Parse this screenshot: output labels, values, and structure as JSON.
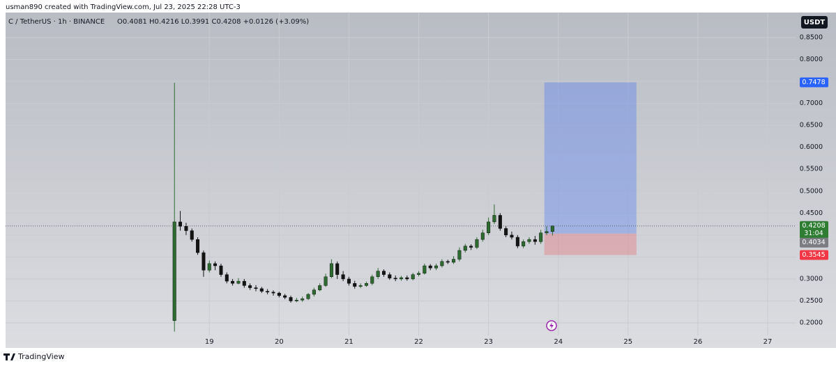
{
  "header": {
    "credit": "usman890 created with TradingView.com, Jul 23, 2025 22:28 UTC-3",
    "symbol": "C / TetherUS · 1h · BINANCE",
    "ohlc": "O0.4081 H0.4216 L0.3991 C0.4208 +0.0126 (+3.09%)",
    "currency": "USDT"
  },
  "chart_data": {
    "type": "candlestick",
    "x": [
      18.5,
      18.583,
      18.667,
      18.75,
      18.833,
      18.917,
      19,
      19.083,
      19.167,
      19.25,
      19.333,
      19.417,
      19.5,
      19.583,
      19.667,
      19.75,
      19.833,
      19.917,
      20,
      20.083,
      20.167,
      20.25,
      20.333,
      20.417,
      20.5,
      20.583,
      20.667,
      20.75,
      20.833,
      20.917,
      21,
      21.083,
      21.167,
      21.25,
      21.333,
      21.417,
      21.5,
      21.583,
      21.667,
      21.75,
      21.833,
      21.917,
      22,
      22.083,
      22.167,
      22.25,
      22.333,
      22.417,
      22.5,
      22.583,
      22.667,
      22.75,
      22.833,
      22.917,
      23,
      23.083,
      23.167,
      23.25,
      23.333,
      23.417,
      23.5,
      23.583,
      23.667,
      23.75,
      23.833,
      23.917
    ],
    "open": [
      0.205,
      0.43,
      0.42,
      0.41,
      0.39,
      0.36,
      0.32,
      0.335,
      0.33,
      0.31,
      0.295,
      0.29,
      0.295,
      0.285,
      0.28,
      0.278,
      0.272,
      0.27,
      0.268,
      0.262,
      0.258,
      0.25,
      0.252,
      0.255,
      0.265,
      0.275,
      0.285,
      0.305,
      0.335,
      0.31,
      0.3,
      0.29,
      0.283,
      0.285,
      0.29,
      0.305,
      0.318,
      0.31,
      0.302,
      0.3,
      0.303,
      0.3,
      0.31,
      0.313,
      0.33,
      0.325,
      0.33,
      0.34,
      0.338,
      0.345,
      0.365,
      0.375,
      0.372,
      0.39,
      0.405,
      0.43,
      0.445,
      0.415,
      0.4,
      0.395,
      0.375,
      0.385,
      0.39,
      0.385,
      0.405,
      0.4081
    ],
    "high": [
      0.747,
      0.455,
      0.428,
      0.415,
      0.395,
      0.365,
      0.342,
      0.34,
      0.335,
      0.315,
      0.3,
      0.302,
      0.3,
      0.29,
      0.286,
      0.282,
      0.277,
      0.274,
      0.271,
      0.266,
      0.262,
      0.257,
      0.26,
      0.268,
      0.28,
      0.29,
      0.312,
      0.345,
      0.34,
      0.318,
      0.305,
      0.296,
      0.29,
      0.294,
      0.31,
      0.325,
      0.322,
      0.315,
      0.308,
      0.307,
      0.308,
      0.314,
      0.318,
      0.335,
      0.334,
      0.335,
      0.345,
      0.344,
      0.352,
      0.372,
      0.38,
      0.379,
      0.395,
      0.412,
      0.44,
      0.47,
      0.45,
      0.42,
      0.408,
      0.4,
      0.39,
      0.395,
      0.398,
      0.412,
      0.42,
      0.4216
    ],
    "low": [
      0.18,
      0.41,
      0.4,
      0.385,
      0.355,
      0.305,
      0.315,
      0.32,
      0.305,
      0.29,
      0.285,
      0.288,
      0.28,
      0.275,
      0.272,
      0.268,
      0.265,
      0.262,
      0.258,
      0.254,
      0.246,
      0.247,
      0.248,
      0.252,
      0.26,
      0.272,
      0.282,
      0.302,
      0.3,
      0.295,
      0.285,
      0.278,
      0.279,
      0.282,
      0.286,
      0.3,
      0.305,
      0.298,
      0.295,
      0.296,
      0.296,
      0.297,
      0.306,
      0.31,
      0.32,
      0.32,
      0.326,
      0.334,
      0.334,
      0.34,
      0.36,
      0.366,
      0.368,
      0.385,
      0.4,
      0.425,
      0.41,
      0.395,
      0.39,
      0.37,
      0.37,
      0.38,
      0.378,
      0.38,
      0.4,
      0.3991
    ],
    "close": [
      0.43,
      0.42,
      0.41,
      0.39,
      0.36,
      0.32,
      0.335,
      0.33,
      0.31,
      0.295,
      0.29,
      0.295,
      0.285,
      0.28,
      0.278,
      0.272,
      0.27,
      0.268,
      0.262,
      0.258,
      0.25,
      0.252,
      0.255,
      0.265,
      0.275,
      0.285,
      0.305,
      0.335,
      0.31,
      0.3,
      0.29,
      0.283,
      0.285,
      0.29,
      0.305,
      0.318,
      0.31,
      0.302,
      0.3,
      0.303,
      0.3,
      0.31,
      0.313,
      0.33,
      0.325,
      0.33,
      0.34,
      0.338,
      0.345,
      0.365,
      0.375,
      0.372,
      0.39,
      0.405,
      0.43,
      0.445,
      0.415,
      0.4,
      0.395,
      0.375,
      0.385,
      0.39,
      0.385,
      0.405,
      0.4081,
      0.4208
    ],
    "up_color": "#2e6b30",
    "down_color": "#141414",
    "xlim": [
      16.08,
      27.41
    ],
    "xticks": [
      19,
      20,
      21,
      22,
      23,
      24,
      25,
      26,
      27
    ],
    "ylim": [
      0.1715,
      0.907
    ],
    "yticks": [
      {
        "value": 0.2,
        "label": "0.2000"
      },
      {
        "value": 0.25,
        "label": "0.2500"
      },
      {
        "value": 0.3,
        "label": "0.3000"
      },
      {
        "value": 0.35,
        "label": "0.3500"
      },
      {
        "value": 0.4,
        "label": "0.4000"
      },
      {
        "value": 0.45,
        "label": "0.4500"
      },
      {
        "value": 0.5,
        "label": "0.5000"
      },
      {
        "value": 0.55,
        "label": "0.5500"
      },
      {
        "value": 0.6,
        "label": "0.6000"
      },
      {
        "value": 0.65,
        "label": "0.6500"
      },
      {
        "value": 0.7,
        "label": "0.7000"
      },
      {
        "value": 0.75,
        "label": "0.7500"
      },
      {
        "value": 0.8,
        "label": "0.8000"
      },
      {
        "value": 0.85,
        "label": "0.8500"
      }
    ],
    "grid": true,
    "last_price": 0.4208,
    "last_price_color": "#2f7d32",
    "countdown": "31:04",
    "position": {
      "x": [
        23.8,
        25.12
      ],
      "entry": 0.4034,
      "target": 0.7478,
      "stop": 0.3545,
      "entry_color": "#7b7d83",
      "target_color": "#2962ff",
      "stop_color": "#f23645"
    }
  },
  "footer": {
    "brand": "TradingView"
  }
}
